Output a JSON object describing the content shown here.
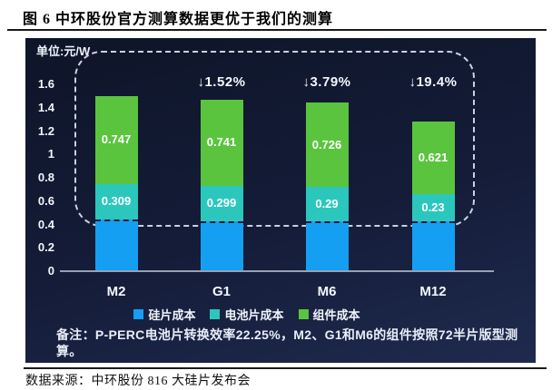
{
  "figure": {
    "title": "图 6  中环股份官方测算数据更优于我们的测算",
    "source": "数据来源：中环股份 816 大硅片发布会"
  },
  "panel": {
    "background_color": "#131b34",
    "note": "备注：P-PERC电池片转换效率22.25%，M2、G1和M6的组件按照72半片版型测算。"
  },
  "chart_data": {
    "type": "bar",
    "stacked": true,
    "unit_label": "单位:元/W",
    "categories": [
      "M2",
      "G1",
      "M6",
      "M12"
    ],
    "series": [
      {
        "name": "硅片成本",
        "color": "#149ff2",
        "show_labels": false,
        "values": [
          0.44,
          0.43,
          0.43,
          0.43
        ]
      },
      {
        "name": "电池片成本",
        "color": "#2bc7bd",
        "show_labels": true,
        "values": [
          0.309,
          0.299,
          0.29,
          0.23
        ]
      },
      {
        "name": "组件成本",
        "color": "#5ac43e",
        "show_labels": true,
        "values": [
          0.747,
          0.741,
          0.726,
          0.621
        ]
      }
    ],
    "annotations": [
      {
        "category": "G1",
        "text": "↓1.52%"
      },
      {
        "category": "M6",
        "text": "↓3.79%"
      },
      {
        "category": "M12",
        "text": "↓19.4%"
      }
    ],
    "ylim": [
      0,
      1.6
    ],
    "yticks": [
      "0",
      "0.2",
      "0.4",
      "0.6",
      "0.8",
      "1",
      "1.2",
      "1.4",
      "1.6"
    ],
    "legend_position": "bottom",
    "grid": false
  }
}
